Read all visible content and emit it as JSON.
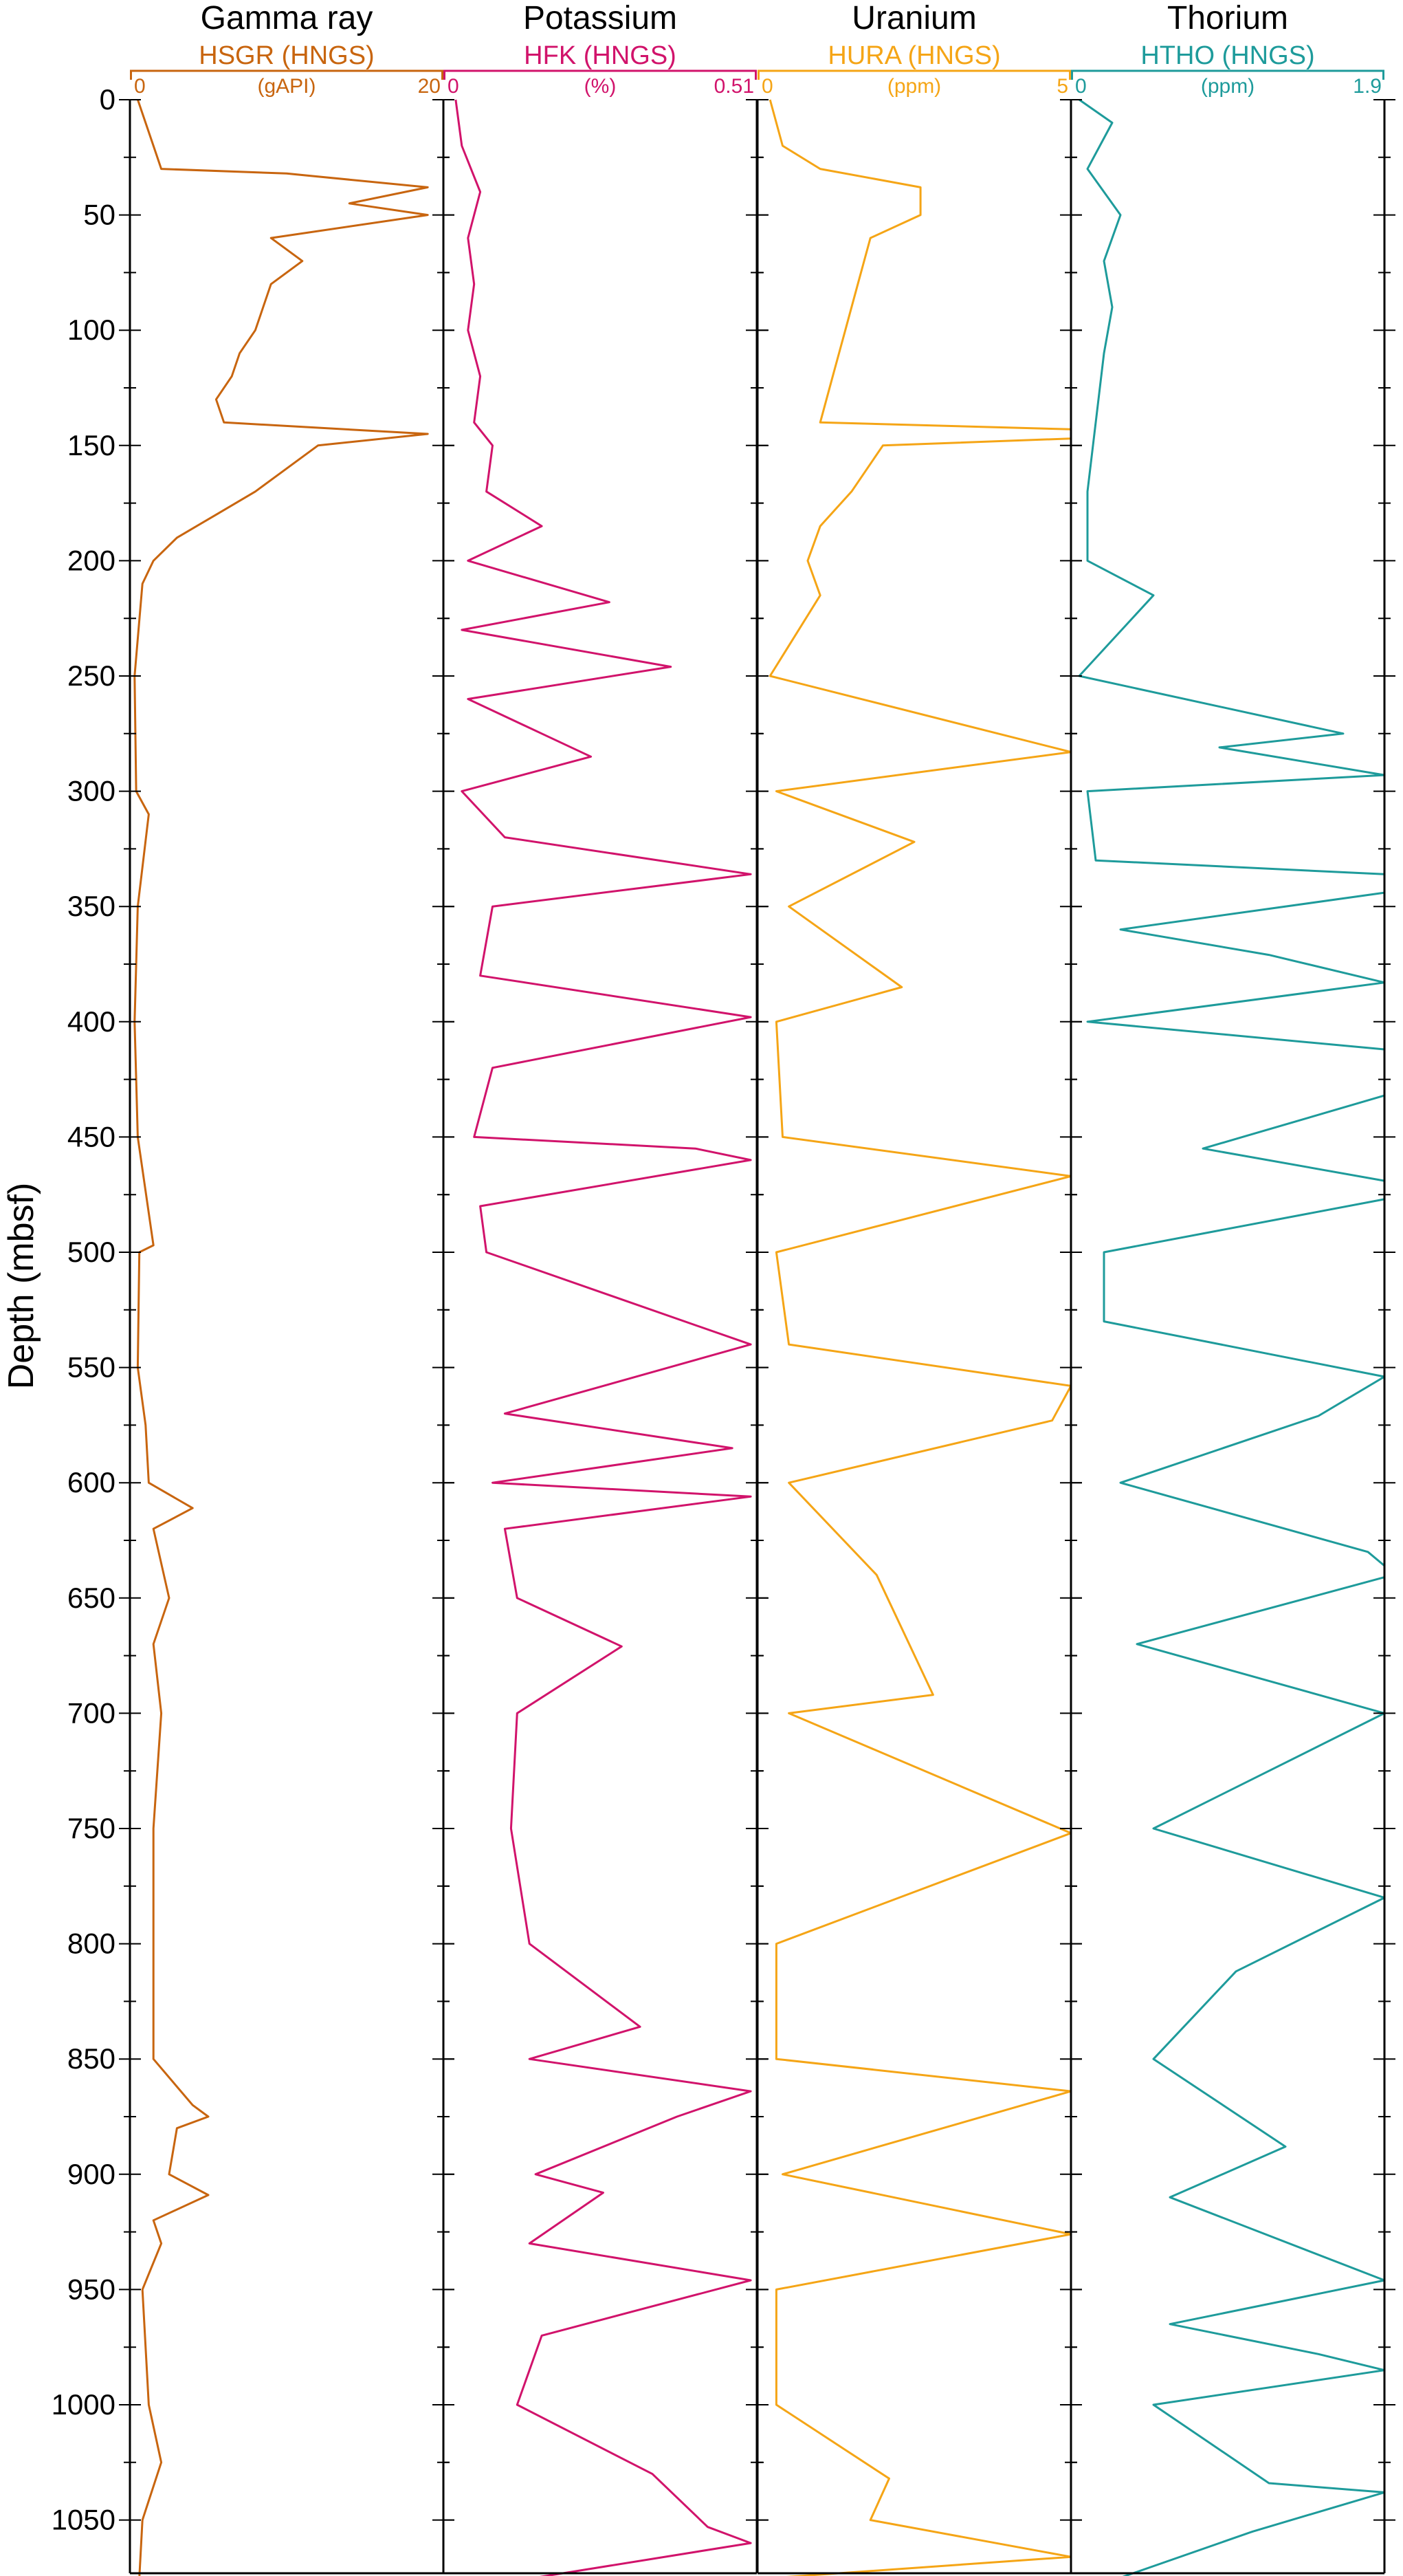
{
  "chart_data": {
    "type": "line",
    "ylabel": "Depth (mbsf)",
    "ylim": [
      0,
      1080
    ],
    "y_inverted": true,
    "yticks": [
      0,
      50,
      100,
      150,
      200,
      250,
      300,
      350,
      400,
      450,
      500,
      550,
      600,
      650,
      700,
      750,
      800,
      850,
      900,
      950,
      1000,
      1050
    ],
    "tracks": [
      {
        "title": "Gamma ray",
        "curve": "HSGR (HNGS)",
        "unit": "(gAPI)",
        "min_label": "0",
        "max_label": "20",
        "xlim": [
          0,
          20
        ],
        "color": "#C8650F",
        "depth": [
          0,
          10,
          20,
          30,
          32,
          38,
          45,
          50,
          60,
          70,
          80,
          90,
          100,
          110,
          120,
          130,
          140,
          145,
          150,
          160,
          170,
          180,
          190,
          200,
          210,
          250,
          300,
          310,
          350,
          400,
          450,
          497,
          500,
          550,
          575,
          600,
          611,
          620,
          650,
          670,
          700,
          750,
          800,
          850,
          870,
          875,
          880,
          900,
          909,
          920,
          930,
          950,
          1000,
          1025,
          1050,
          1075
        ],
        "values": [
          0.5,
          1.0,
          1.5,
          2.0,
          10.0,
          19.0,
          14.0,
          19.0,
          9.0,
          11.0,
          9.0,
          8.5,
          8.0,
          7.0,
          6.5,
          5.5,
          6.0,
          19.0,
          12.0,
          10.0,
          8.0,
          5.5,
          3.0,
          1.5,
          0.8,
          0.3,
          0.4,
          1.2,
          0.5,
          0.3,
          0.5,
          1.5,
          0.6,
          0.5,
          1.0,
          1.2,
          4.0,
          1.5,
          2.5,
          1.5,
          2.0,
          1.5,
          1.5,
          1.5,
          4.0,
          5.0,
          3.0,
          2.5,
          5.0,
          1.5,
          2.0,
          0.8,
          1.2,
          2.0,
          0.8,
          0.6
        ]
      },
      {
        "title": "Potassium",
        "curve": "HFK (HNGS)",
        "unit": "(%)",
        "min_label": "0",
        "max_label": "0.51",
        "xlim": [
          0,
          0.51
        ],
        "color": "#D1136B",
        "depth": [
          0,
          20,
          40,
          60,
          80,
          100,
          120,
          140,
          150,
          170,
          185,
          200,
          218,
          230,
          246,
          260,
          275,
          285,
          300,
          320,
          336,
          350,
          380,
          398,
          420,
          450,
          455,
          460,
          480,
          500,
          540,
          570,
          585,
          600,
          606,
          620,
          650,
          671,
          700,
          750,
          800,
          836,
          850,
          864,
          875,
          900,
          908,
          930,
          946,
          970,
          1000,
          1030,
          1053,
          1060,
          1075
        ],
        "values": [
          0.02,
          0.03,
          0.06,
          0.04,
          0.05,
          0.04,
          0.06,
          0.05,
          0.08,
          0.07,
          0.16,
          0.04,
          0.27,
          0.03,
          0.37,
          0.04,
          0.16,
          0.24,
          0.03,
          0.1,
          0.5,
          0.08,
          0.06,
          0.5,
          0.08,
          0.05,
          0.41,
          0.5,
          0.06,
          0.07,
          0.5,
          0.1,
          0.47,
          0.08,
          0.5,
          0.1,
          0.12,
          0.29,
          0.12,
          0.11,
          0.14,
          0.32,
          0.14,
          0.5,
          0.38,
          0.15,
          0.26,
          0.14,
          0.5,
          0.16,
          0.12,
          0.34,
          0.43,
          0.5,
          0.15
        ]
      },
      {
        "title": "Uranium",
        "curve": "HURA (HNGS)",
        "unit": "(ppm)",
        "min_label": "0",
        "max_label": "5",
        "xlim": [
          0,
          5
        ],
        "color": "#F5A516",
        "depth": [
          0,
          20,
          30,
          38,
          50,
          60,
          80,
          100,
          120,
          140,
          143,
          147,
          150,
          170,
          185,
          200,
          215,
          250,
          283,
          300,
          322,
          350,
          385,
          400,
          450,
          467,
          500,
          540,
          558,
          573,
          600,
          640,
          692,
          700,
          752,
          800,
          850,
          864,
          900,
          926,
          950,
          1000,
          1032,
          1050,
          1066,
          1075
        ],
        "values": [
          0.2,
          0.4,
          1.0,
          2.6,
          2.6,
          1.8,
          1.6,
          1.4,
          1.2,
          1.0,
          5.0,
          5.0,
          2.0,
          1.5,
          1.0,
          0.8,
          1.0,
          0.2,
          5.0,
          0.3,
          2.5,
          0.5,
          2.3,
          0.3,
          0.4,
          5.0,
          0.3,
          0.5,
          5.0,
          4.7,
          0.5,
          1.9,
          2.8,
          0.5,
          5.0,
          0.3,
          0.3,
          5.0,
          0.4,
          5.0,
          0.3,
          0.3,
          2.1,
          1.8,
          5.0,
          0.3
        ]
      },
      {
        "title": "Thorium",
        "curve": "HTHO (HNGS)",
        "unit": "(ppm)",
        "min_label": "0",
        "max_label": "1.9",
        "xlim": [
          0,
          1.9
        ],
        "color": "#1E9B9B",
        "depth": [
          0,
          10,
          30,
          50,
          70,
          90,
          110,
          140,
          170,
          200,
          215,
          250,
          275,
          281,
          293,
          300,
          330,
          336,
          344,
          360,
          371,
          383,
          400,
          412,
          432,
          455,
          469,
          477,
          500,
          530,
          554,
          571,
          600,
          630,
          636,
          641,
          670,
          700,
          750,
          780,
          812,
          850,
          888,
          910,
          946,
          965,
          978,
          985,
          1000,
          1034,
          1038,
          1055,
          1075
        ],
        "values": [
          0.05,
          0.25,
          0.1,
          0.3,
          0.2,
          0.25,
          0.2,
          0.15,
          0.1,
          0.1,
          0.5,
          0.05,
          1.65,
          0.9,
          1.9,
          0.1,
          0.15,
          1.9,
          1.9,
          0.3,
          1.2,
          1.9,
          0.1,
          1.9,
          1.9,
          0.8,
          1.9,
          1.9,
          0.2,
          0.2,
          1.9,
          1.5,
          0.3,
          1.8,
          1.9,
          1.9,
          0.4,
          1.9,
          0.5,
          1.9,
          1.0,
          0.5,
          1.3,
          0.6,
          1.9,
          0.6,
          1.5,
          1.9,
          0.5,
          1.2,
          1.9,
          1.1,
          0.3
        ]
      }
    ]
  }
}
